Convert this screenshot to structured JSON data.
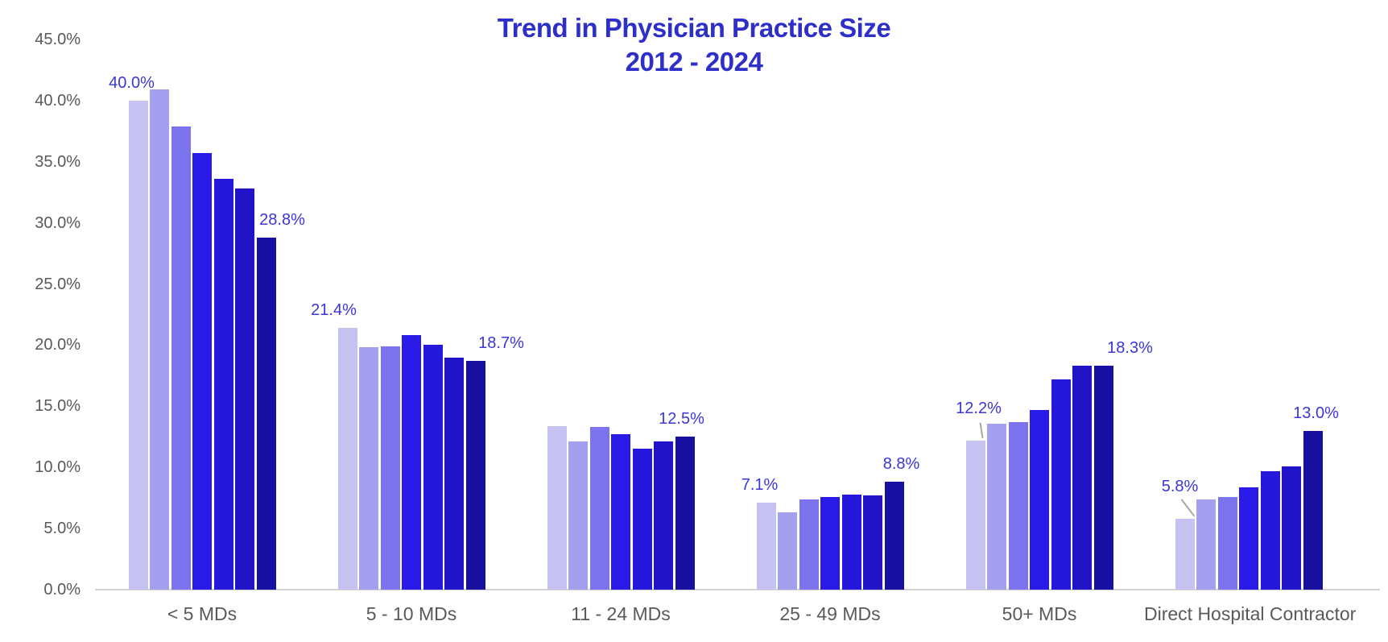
{
  "title": {
    "line1": "Trend in Physician Practice Size",
    "line2": "2012 - 2024"
  },
  "colors": {
    "background": "#FFFFFF",
    "title_text": "#2E2EC8",
    "data_label_text": "#3B36D6",
    "axis_text": "#595959",
    "axis_line": "#D6D3D3",
    "leader_line": "#A6A6A6",
    "bars": [
      "#C6C2F2",
      "#A49FEF",
      "#7B74EE",
      "#2A1AE8",
      "#2617DC",
      "#2013C8",
      "#1810A0"
    ]
  },
  "chart_data": {
    "type": "bar",
    "title": "Trend in Physician Practice Size 2012 - 2024",
    "xlabel": "",
    "ylabel": "",
    "ylim": [
      0,
      45
    ],
    "y_tick_step": 5,
    "y_tick_labels": [
      "45.0%",
      "40.0%",
      "35.0%",
      "30.0%",
      "25.0%",
      "20.0%",
      "15.0%",
      "10.0%",
      "5.0%",
      "0.0%"
    ],
    "grid": false,
    "legend": "none",
    "categories": [
      "< 5 MDs",
      "5 - 10 MDs",
      "11 - 24 MDs",
      "25 - 49 MDs",
      "50+ MDs",
      "Direct Hospital Contractor"
    ],
    "series": [
      {
        "name": "bar-1",
        "values": [
          40.0,
          21.4,
          13.4,
          7.1,
          12.2,
          5.8
        ]
      },
      {
        "name": "bar-2",
        "values": [
          40.9,
          19.8,
          12.1,
          6.3,
          13.6,
          7.4
        ]
      },
      {
        "name": "bar-3",
        "values": [
          37.9,
          19.9,
          13.3,
          7.4,
          13.7,
          7.6
        ]
      },
      {
        "name": "bar-4",
        "values": [
          35.7,
          20.8,
          12.7,
          7.6,
          14.7,
          8.4
        ]
      },
      {
        "name": "bar-5",
        "values": [
          33.6,
          20.0,
          11.5,
          7.8,
          17.2,
          9.7
        ]
      },
      {
        "name": "bar-6",
        "values": [
          32.8,
          19.0,
          12.1,
          7.7,
          18.3,
          10.1
        ]
      },
      {
        "name": "bar-7",
        "values": [
          28.8,
          18.7,
          12.5,
          8.8,
          18.3,
          13.0
        ]
      }
    ],
    "data_labels": [
      {
        "category": "< 5 MDs",
        "first": "40.0%",
        "last": "28.8%",
        "first_leader": false
      },
      {
        "category": "5 - 10 MDs",
        "first": "21.4%",
        "last": "18.7%",
        "first_leader": false
      },
      {
        "category": "11 - 24 MDs",
        "first": null,
        "last": "12.5%",
        "first_leader": false
      },
      {
        "category": "25 - 49 MDs",
        "first": "7.1%",
        "last": "8.8%",
        "first_leader": false
      },
      {
        "category": "50+ MDs",
        "first": "12.2%",
        "last": "18.3%",
        "first_leader": true
      },
      {
        "category": "Direct Hospital Contractor",
        "first": "5.8%",
        "last": "13.0%",
        "first_leader": true
      }
    ]
  }
}
